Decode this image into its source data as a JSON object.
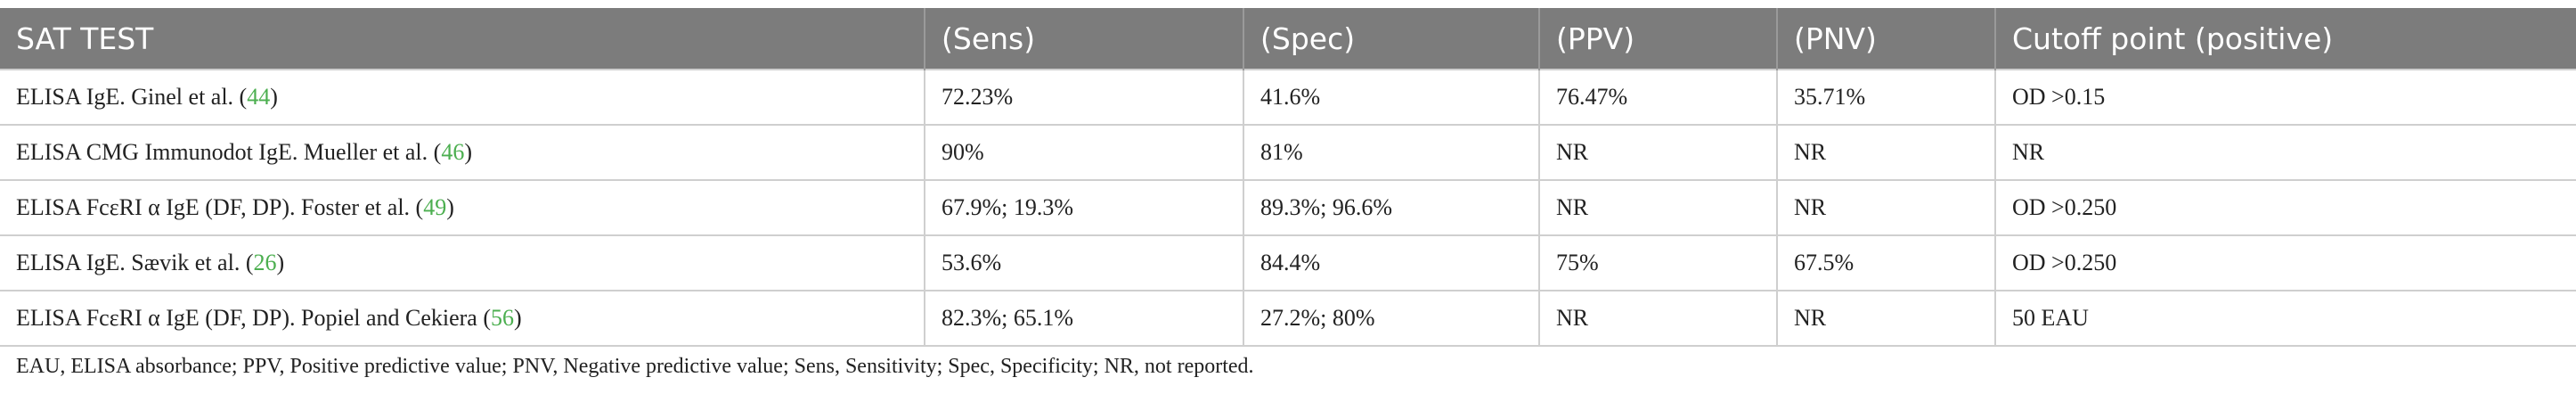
{
  "table": {
    "header": [
      "SAT TEST",
      "(Sens)",
      "(Spec)",
      "(PPV)",
      "(PNV)",
      "Cutoff point (positive)"
    ],
    "rows": [
      [
        {
          "pre": "ELISA IgE. Ginel et al. (",
          "ref": "44",
          "post": ")"
        },
        "72.23%",
        "41.6%",
        "76.47%",
        "35.71%",
        "OD >0.15"
      ],
      [
        {
          "pre": "ELISA CMG Immunodot IgE. Mueller et al. (",
          "ref": "46",
          "post": ")"
        },
        "90%",
        "81%",
        "NR",
        "NR",
        "NR"
      ],
      [
        {
          "pre": "ELISA FcεRI α IgE (DF, DP). Foster et al. (",
          "ref": "49",
          "post": ")"
        },
        "67.9%; 19.3%",
        "89.3%; 96.6%",
        "NR",
        "NR",
        "OD >0.250"
      ],
      [
        {
          "pre": "ELISA IgE. Sævik et al. (",
          "ref": "26",
          "post": ")"
        },
        "53.6%",
        "84.4%",
        "75%",
        "67.5%",
        "OD >0.250"
      ],
      [
        {
          "pre": "ELISA FcεRI α IgE (DF, DP). Popiel and Cekiera (",
          "ref": "56",
          "post": ")"
        },
        "82.3%; 65.1%",
        "27.2%; 80%",
        "NR",
        "NR",
        "50 EAU"
      ]
    ],
    "footnote": "EAU, ELISA absorbance; PPV, Positive predictive value; PNV, Negative predictive value; Sens, Sensitivity; Spec, Specificity; NR, not reported."
  }
}
